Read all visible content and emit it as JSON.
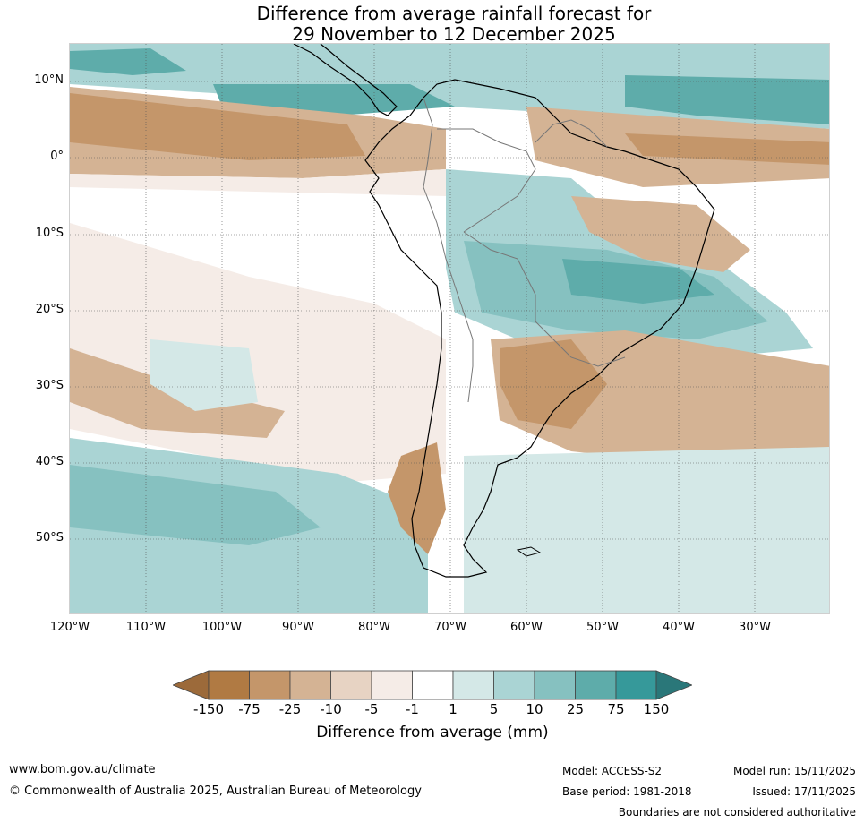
{
  "title": {
    "line1": "Difference from average rainfall forecast for",
    "line2": "29 November to 12 December 2025"
  },
  "map": {
    "lat_labels": [
      "10°N",
      "0°",
      "10°S",
      "20°S",
      "30°S",
      "40°S",
      "50°S"
    ],
    "lon_labels": [
      "120°W",
      "110°W",
      "100°W",
      "90°W",
      "80°W",
      "70°W",
      "60°W",
      "50°W",
      "40°W",
      "30°W"
    ],
    "extent_deg": {
      "lon_min": -120,
      "lon_max": -20,
      "lat_min": -60,
      "lat_max": 15
    }
  },
  "colorbar": {
    "title": "Difference from average (mm)",
    "tick_labels": [
      "-150",
      "-75",
      "-25",
      "-10",
      "-5",
      "-1",
      "1",
      "5",
      "10",
      "25",
      "75",
      "150"
    ],
    "colors": [
      "#9c6a3a",
      "#b07a43",
      "#c4966a",
      "#d4b394",
      "#e7d3c3",
      "#f5ece7",
      "#ffffff",
      "#d4e8e7",
      "#aad4d4",
      "#86c1c0",
      "#5eacaa",
      "#36999a",
      "#2a7779"
    ]
  },
  "footer": {
    "website": "www.bom.gov.au/climate",
    "copyright": "© Commonwealth of Australia 2025, Australian Bureau of Meteorology",
    "model": "Model: ACCESS-S2",
    "base_period": "Base period: 1981-2018",
    "model_run": "Model run: 15/11/2025",
    "issued": "Issued: 17/11/2025",
    "disclaimer": "Boundaries are not considered authoritative"
  }
}
